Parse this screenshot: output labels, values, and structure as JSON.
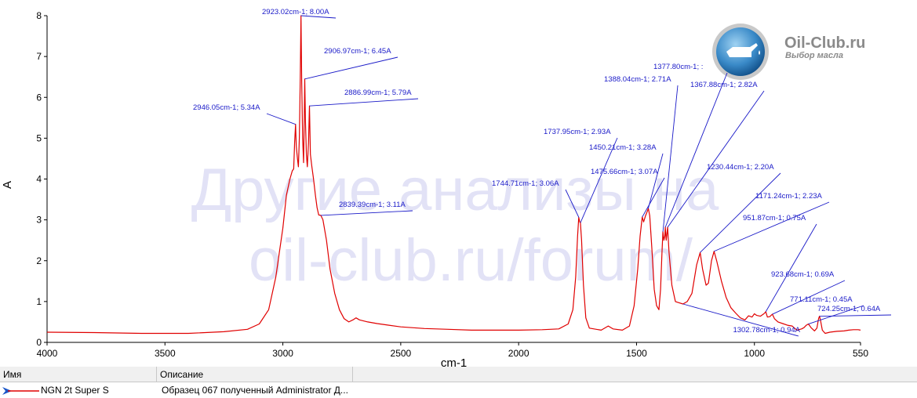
{
  "watermark": {
    "line1": "Другие анализы на",
    "line2": "oil-club.ru/forum/"
  },
  "logo": {
    "title": "Oil-Club.ru",
    "subtitle": "Выбор масла"
  },
  "legend_table": {
    "columns": [
      "Имя",
      "Описание"
    ],
    "rows": [
      {
        "name": "NGN 2t Super S",
        "description": "Образец 067 полученный Administrator Д..."
      }
    ]
  },
  "colors": {
    "series": "#e00000",
    "annotation": "#1a1ac8",
    "watermark": "#e2e2f6"
  },
  "chart_data": {
    "type": "line",
    "title": "",
    "xlabel": "cm-1",
    "ylabel": "A",
    "xlim": [
      4000,
      550
    ],
    "ylim": [
      0,
      8
    ],
    "x_ticks": [
      4000,
      3500,
      3000,
      2500,
      2000,
      1500,
      1000,
      550
    ],
    "y_ticks": [
      0,
      1,
      2,
      3,
      4,
      5,
      6,
      7,
      8
    ],
    "grid": false,
    "series": [
      {
        "name": "NGN 2t Super S",
        "points": [
          [
            4000,
            0.25
          ],
          [
            3800,
            0.24
          ],
          [
            3600,
            0.22
          ],
          [
            3400,
            0.22
          ],
          [
            3250,
            0.26
          ],
          [
            3150,
            0.32
          ],
          [
            3100,
            0.45
          ],
          [
            3060,
            0.8
          ],
          [
            3030,
            1.6
          ],
          [
            3000,
            2.8
          ],
          [
            2985,
            3.6
          ],
          [
            2970,
            4.0
          ],
          [
            2960,
            4.2
          ],
          [
            2954,
            4.25
          ],
          [
            2950,
            4.9
          ],
          [
            2946,
            5.34
          ],
          [
            2943,
            4.8
          ],
          [
            2938,
            4.5
          ],
          [
            2934,
            4.3
          ],
          [
            2930,
            5.0
          ],
          [
            2926,
            6.5
          ],
          [
            2923,
            8.0
          ],
          [
            2920,
            6.4
          ],
          [
            2916,
            5.0
          ],
          [
            2912,
            4.4
          ],
          [
            2909,
            5.5
          ],
          [
            2907,
            6.45
          ],
          [
            2904,
            5.4
          ],
          [
            2900,
            4.6
          ],
          [
            2896,
            4.3
          ],
          [
            2891,
            4.9
          ],
          [
            2887,
            5.79
          ],
          [
            2883,
            4.6
          ],
          [
            2877,
            4.3
          ],
          [
            2870,
            4.0
          ],
          [
            2862,
            3.6
          ],
          [
            2855,
            3.3
          ],
          [
            2848,
            3.12
          ],
          [
            2839,
            3.11
          ],
          [
            2830,
            3.0
          ],
          [
            2815,
            2.5
          ],
          [
            2800,
            1.8
          ],
          [
            2780,
            1.2
          ],
          [
            2760,
            0.8
          ],
          [
            2740,
            0.58
          ],
          [
            2720,
            0.5
          ],
          [
            2700,
            0.56
          ],
          [
            2690,
            0.6
          ],
          [
            2675,
            0.55
          ],
          [
            2640,
            0.5
          ],
          [
            2600,
            0.46
          ],
          [
            2550,
            0.42
          ],
          [
            2500,
            0.38
          ],
          [
            2400,
            0.34
          ],
          [
            2300,
            0.32
          ],
          [
            2200,
            0.3
          ],
          [
            2100,
            0.3
          ],
          [
            2000,
            0.3
          ],
          [
            1900,
            0.31
          ],
          [
            1830,
            0.33
          ],
          [
            1790,
            0.45
          ],
          [
            1770,
            0.8
          ],
          [
            1758,
            1.6
          ],
          [
            1750,
            2.6
          ],
          [
            1745,
            3.06
          ],
          [
            1741,
            2.95
          ],
          [
            1738,
            2.93
          ],
          [
            1733,
            2.5
          ],
          [
            1725,
            1.4
          ],
          [
            1715,
            0.6
          ],
          [
            1700,
            0.35
          ],
          [
            1650,
            0.3
          ],
          [
            1620,
            0.4
          ],
          [
            1600,
            0.33
          ],
          [
            1560,
            0.3
          ],
          [
            1530,
            0.4
          ],
          [
            1510,
            0.9
          ],
          [
            1495,
            1.8
          ],
          [
            1485,
            2.6
          ],
          [
            1476,
            3.07
          ],
          [
            1470,
            2.95
          ],
          [
            1462,
            3.1
          ],
          [
            1455,
            3.2
          ],
          [
            1450,
            3.28
          ],
          [
            1444,
            3.1
          ],
          [
            1435,
            2.3
          ],
          [
            1425,
            1.3
          ],
          [
            1415,
            0.9
          ],
          [
            1405,
            0.8
          ],
          [
            1398,
            1.3
          ],
          [
            1392,
            2.2
          ],
          [
            1388,
            2.71
          ],
          [
            1384,
            2.5
          ],
          [
            1380,
            2.6
          ],
          [
            1378,
            2.82
          ],
          [
            1374,
            2.5
          ],
          [
            1368,
            2.82
          ],
          [
            1362,
            2.2
          ],
          [
            1350,
            1.4
          ],
          [
            1335,
            1.0
          ],
          [
            1320,
            0.97
          ],
          [
            1303,
            0.94
          ],
          [
            1285,
            1.0
          ],
          [
            1265,
            1.2
          ],
          [
            1245,
            1.9
          ],
          [
            1230,
            2.2
          ],
          [
            1220,
            1.8
          ],
          [
            1205,
            1.4
          ],
          [
            1195,
            1.45
          ],
          [
            1182,
            2.0
          ],
          [
            1171,
            2.23
          ],
          [
            1160,
            2.0
          ],
          [
            1140,
            1.5
          ],
          [
            1120,
            1.1
          ],
          [
            1100,
            0.85
          ],
          [
            1080,
            0.72
          ],
          [
            1060,
            0.6
          ],
          [
            1040,
            0.55
          ],
          [
            1025,
            0.65
          ],
          [
            1010,
            0.62
          ],
          [
            1000,
            0.7
          ],
          [
            990,
            0.66
          ],
          [
            975,
            0.64
          ],
          [
            960,
            0.7
          ],
          [
            952,
            0.75
          ],
          [
            945,
            0.62
          ],
          [
            935,
            0.63
          ],
          [
            924,
            0.69
          ],
          [
            915,
            0.58
          ],
          [
            900,
            0.5
          ],
          [
            880,
            0.46
          ],
          [
            860,
            0.42
          ],
          [
            840,
            0.4
          ],
          [
            820,
            0.3
          ],
          [
            800,
            0.33
          ],
          [
            790,
            0.36
          ],
          [
            780,
            0.42
          ],
          [
            771,
            0.45
          ],
          [
            760,
            0.36
          ],
          [
            745,
            0.28
          ],
          [
            735,
            0.35
          ],
          [
            728,
            0.58
          ],
          [
            724,
            0.64
          ],
          [
            720,
            0.55
          ],
          [
            712,
            0.3
          ],
          [
            700,
            0.22
          ],
          [
            680,
            0.25
          ],
          [
            650,
            0.27
          ],
          [
            620,
            0.28
          ],
          [
            600,
            0.3
          ],
          [
            580,
            0.31
          ],
          [
            560,
            0.31
          ],
          [
            550,
            0.3
          ]
        ]
      }
    ],
    "annotations": [
      {
        "x": 2923.02,
        "y": 8.0,
        "text": "2923.02cm-1; 8.00A"
      },
      {
        "x": 2906.97,
        "y": 6.45,
        "text": "2906.97cm-1; 6.45A"
      },
      {
        "x": 2886.99,
        "y": 5.79,
        "text": "2886.99cm-1; 5.79A"
      },
      {
        "x": 2946.05,
        "y": 5.34,
        "text": "2946.05cm-1; 5.34A"
      },
      {
        "x": 2839.39,
        "y": 3.11,
        "text": "2839.39cm-1; 3.11A"
      },
      {
        "x": 1737.95,
        "y": 2.93,
        "text": "1737.95cm-1; 2.93A"
      },
      {
        "x": 1744.71,
        "y": 3.06,
        "text": "1744.71cm-1; 3.06A"
      },
      {
        "x": 1450.21,
        "y": 3.28,
        "text": "1450.21cm-1; 3.28A"
      },
      {
        "x": 1475.66,
        "y": 3.07,
        "text": "1475.66cm-1; 3.07A"
      },
      {
        "x": 1388.04,
        "y": 2.71,
        "text": "1388.04cm-1; 2.71A"
      },
      {
        "x": 1377.8,
        "y": 2.82,
        "text": "1377.80cm-1; :"
      },
      {
        "x": 1367.88,
        "y": 2.82,
        "text": "1367.88cm-1; 2.82A"
      },
      {
        "x": 1230.44,
        "y": 2.2,
        "text": "1230.44cm-1; 2.20A"
      },
      {
        "x": 1171.24,
        "y": 2.23,
        "text": "1171.24cm-1; 2.23A"
      },
      {
        "x": 951.87,
        "y": 0.75,
        "text": "951.87cm-1; 0.75A"
      },
      {
        "x": 923.68,
        "y": 0.69,
        "text": "923.68cm-1; 0.69A"
      },
      {
        "x": 771.11,
        "y": 0.45,
        "text": "771.11cm-1; 0.45A"
      },
      {
        "x": 724.25,
        "y": 0.64,
        "text": "724.25cm-1; 0.64A"
      },
      {
        "x": 1302.78,
        "y": 0.94,
        "text": "1302.78cm-1; 0.94A"
      }
    ]
  }
}
